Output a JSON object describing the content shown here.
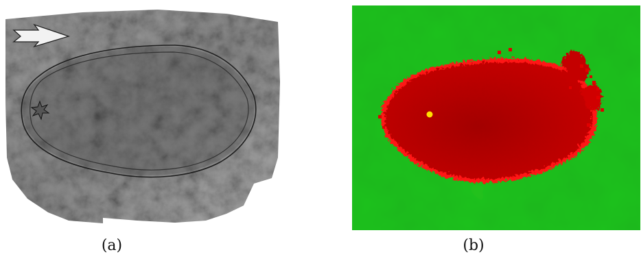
{
  "figure": {
    "panel_a": {
      "caption": "(a)",
      "colors": {
        "terrain": "#8c8c8c",
        "terrain_light": "#bdbdbd",
        "terrain_dark": "#5c5c5c",
        "outline": "#222222",
        "burned_overlay": "#5a5a5a",
        "arrow": "#f2f2f2"
      }
    },
    "panel_b": {
      "caption": "(b)",
      "colors": {
        "background": "#1fc01f",
        "burned_area": "#b80000",
        "burned_edge": "#ff1010",
        "ignition_point": "#ffe000"
      }
    }
  }
}
